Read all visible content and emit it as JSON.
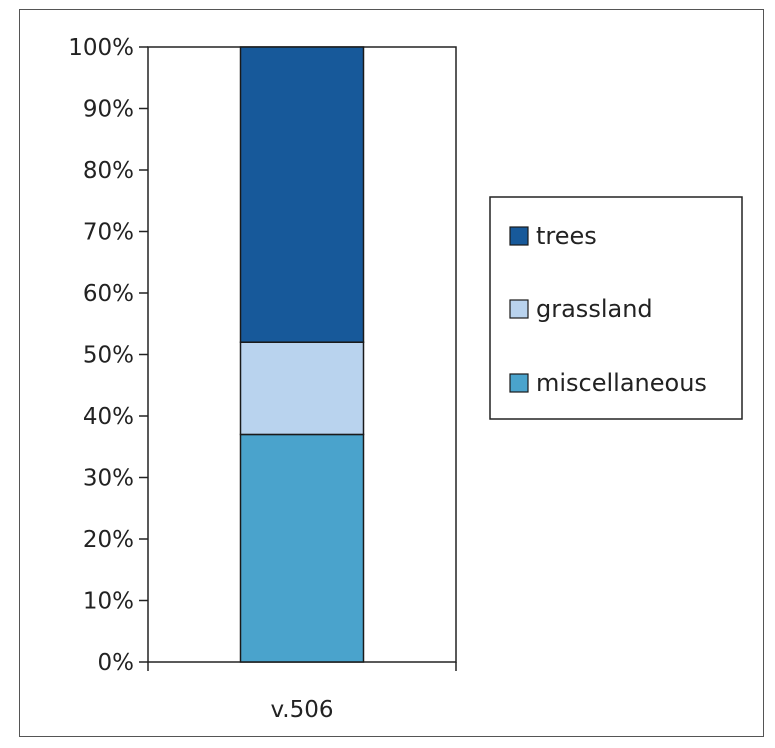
{
  "chart_data": {
    "type": "bar",
    "stacked": true,
    "percent_axis": true,
    "categories": [
      "v.506"
    ],
    "series": [
      {
        "name": "miscellaneous",
        "values": [
          37
        ],
        "color": "#4aa3cc"
      },
      {
        "name": "grassland",
        "values": [
          15
        ],
        "color": "#b9d3ee"
      },
      {
        "name": "trees",
        "values": [
          48
        ],
        "color": "#17599a"
      }
    ],
    "y_ticks": [
      "0%",
      "10%",
      "20%",
      "30%",
      "40%",
      "50%",
      "60%",
      "70%",
      "80%",
      "90%",
      "100%"
    ],
    "ylim": [
      0,
      100
    ],
    "legend_order": [
      "trees",
      "grassland",
      "miscellaneous"
    ],
    "legend_position": "right",
    "grid": false
  }
}
